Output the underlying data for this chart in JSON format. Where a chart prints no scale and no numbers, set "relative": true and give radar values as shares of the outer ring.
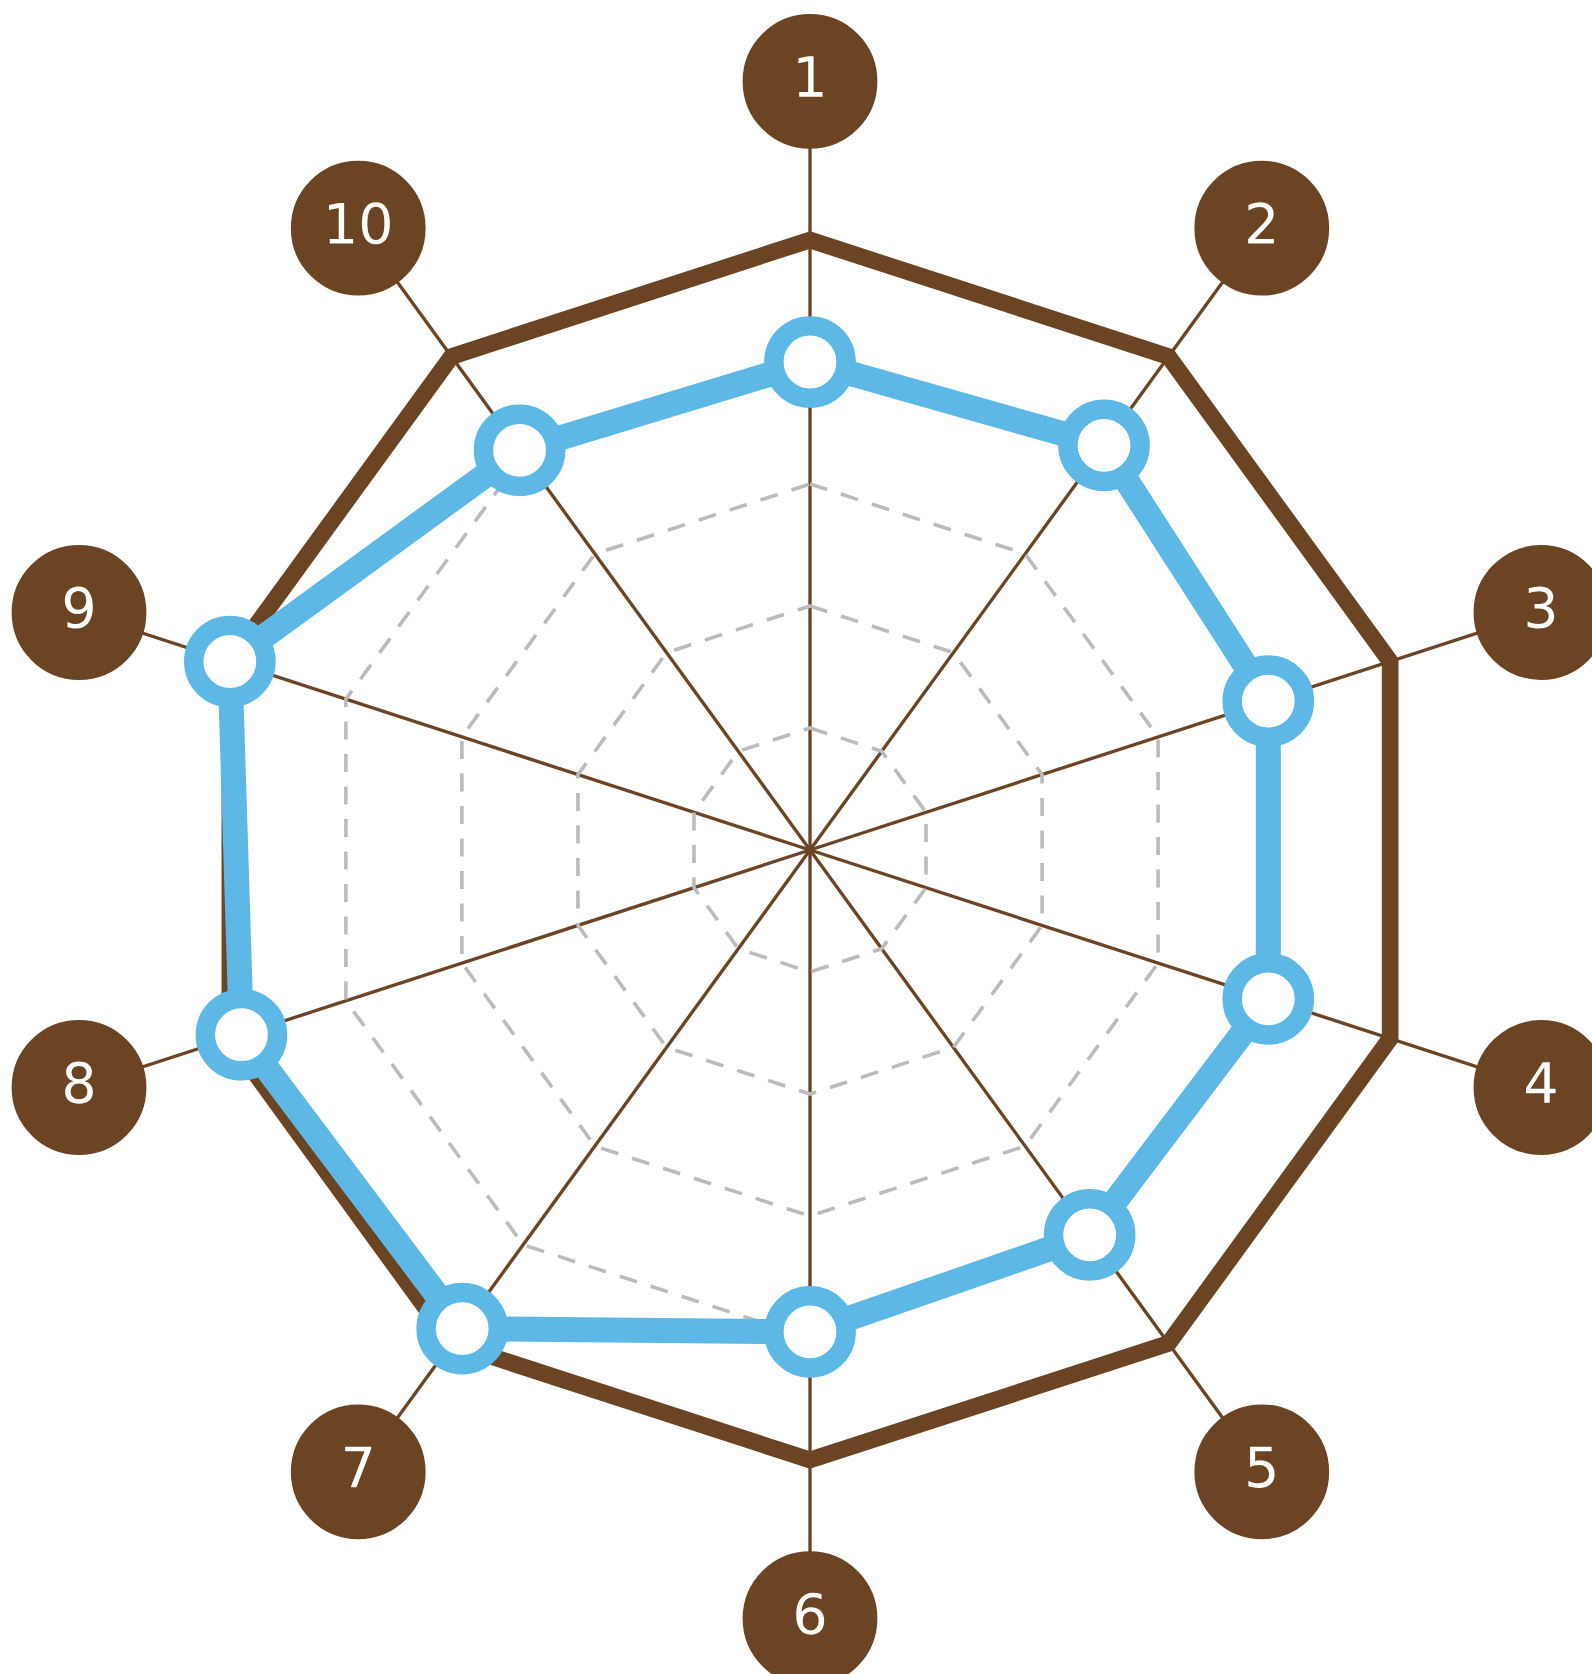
{
  "chart_data": {
    "type": "radar",
    "relative": true,
    "categories": [
      "1",
      "2",
      "3",
      "4",
      "5",
      "6",
      "7",
      "8",
      "9",
      "10"
    ],
    "series": [
      {
        "color": "#5db8e6",
        "values": [
          0.8,
          0.82,
          0.79,
          0.79,
          0.78,
          0.79,
          0.97,
          0.98,
          1.0,
          0.81
        ]
      }
    ],
    "grid": true,
    "marker": "circle",
    "line_style": "solid"
  }
}
